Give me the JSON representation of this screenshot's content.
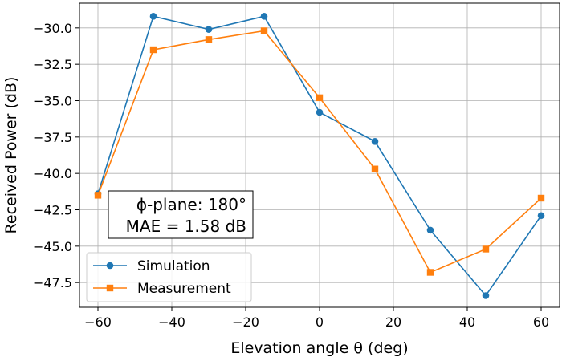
{
  "chart_data": {
    "type": "line",
    "title": "",
    "xlabel": "Elevation angle θ (deg)",
    "ylabel": "Received Power (dB)",
    "xlim": [
      -65,
      65
    ],
    "ylim": [
      -49.2,
      -28.3
    ],
    "xticks": [
      -60,
      -40,
      -20,
      0,
      20,
      40,
      60
    ],
    "xtick_labels": [
      "−60",
      "−40",
      "−20",
      "0",
      "20",
      "40",
      "60"
    ],
    "yticks": [
      -30.0,
      -32.5,
      -35.0,
      -37.5,
      -40.0,
      -42.5,
      -45.0,
      -47.5
    ],
    "ytick_labels": [
      "−30.0",
      "−32.5",
      "−35.0",
      "−37.5",
      "−40.0",
      "−42.5",
      "−45.0",
      "−47.5"
    ],
    "grid": true,
    "legend_position": "lower-left",
    "x": [
      -60,
      -45,
      -30,
      -15,
      0,
      15,
      30,
      45,
      60
    ],
    "series": [
      {
        "name": "Simulation",
        "marker": "circle",
        "color": "#1f77b4",
        "values": [
          -41.4,
          -29.2,
          -30.1,
          -29.2,
          -35.8,
          -37.8,
          -43.9,
          -48.4,
          -42.9
        ]
      },
      {
        "name": "Measurement",
        "marker": "square",
        "color": "#ff7f0e",
        "values": [
          -41.5,
          -31.5,
          -30.8,
          -30.2,
          -34.8,
          -39.7,
          -46.8,
          -45.2,
          -41.7
        ]
      }
    ],
    "annotation": {
      "line1": "ϕ-plane: 180°",
      "line2": "MAE = 1.58 dB"
    }
  }
}
